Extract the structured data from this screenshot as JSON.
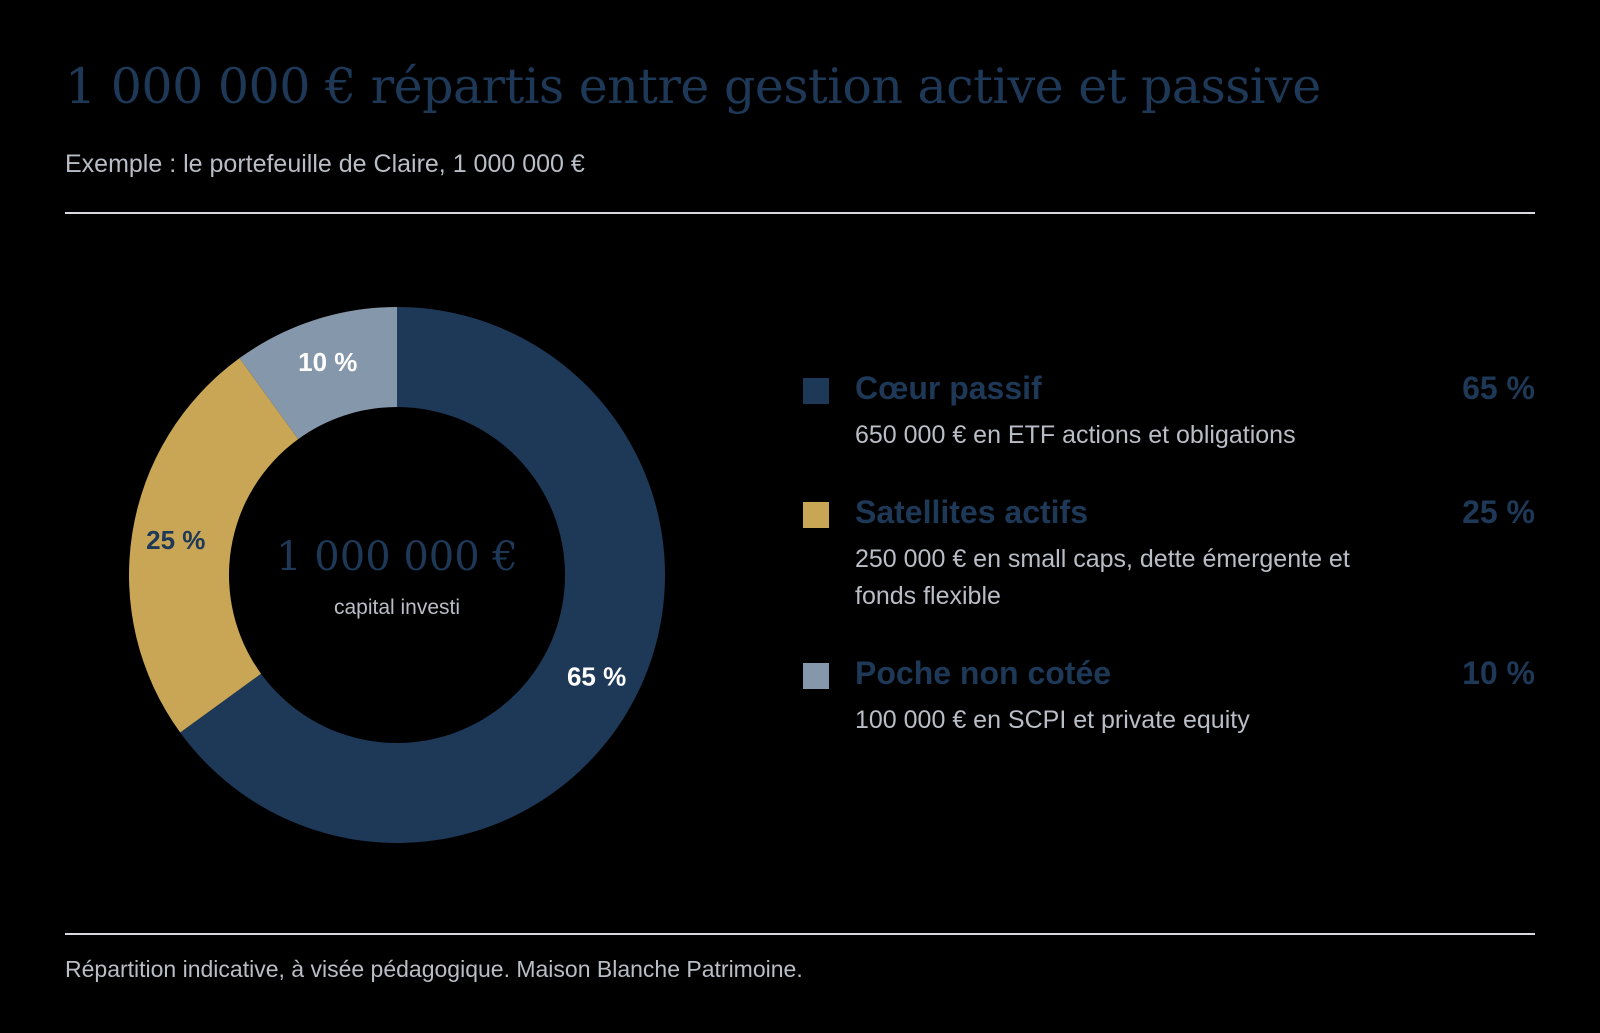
{
  "title": "1 000 000 € répartis entre gestion active et passive",
  "subtitle": "Exemple : le portefeuille de Claire, 1 000 000 €",
  "footnote": "Répartition indicative, à visée pédagogique. Maison Blanche Patrimoine.",
  "chart_data": {
    "type": "pie",
    "variant": "donut",
    "center_value": "1 000 000 €",
    "center_caption": "capital investi",
    "slices": [
      {
        "name": "Cœur passif",
        "value": 65,
        "label": "65 %",
        "color": "#1e3857",
        "label_color": "#ffffff",
        "description": "650 000 € en ETF actions et obligations"
      },
      {
        "name": "Satellites actifs",
        "value": 25,
        "label": "25 %",
        "color": "#c9a655",
        "label_color": "#1e3857",
        "description": "250 000 € en small caps, dette émergente et fonds flexible"
      },
      {
        "name": "Poche non cotée",
        "value": 10,
        "label": "10 %",
        "color": "#8597aa",
        "label_color": "#ffffff",
        "description": "100 000 € en SCPI et private equity"
      }
    ]
  },
  "legend": {
    "items": [
      {
        "name": "Cœur passif",
        "pct": "65 %",
        "desc": "650 000 € en ETF actions et obligations"
      },
      {
        "name": "Satellites actifs",
        "pct": "25 %",
        "desc": "250 000 € en small caps, dette émergente et fonds flexible"
      },
      {
        "name": "Poche non cotée",
        "pct": "10 %",
        "desc": "100 000 € en SCPI et private equity"
      }
    ]
  }
}
